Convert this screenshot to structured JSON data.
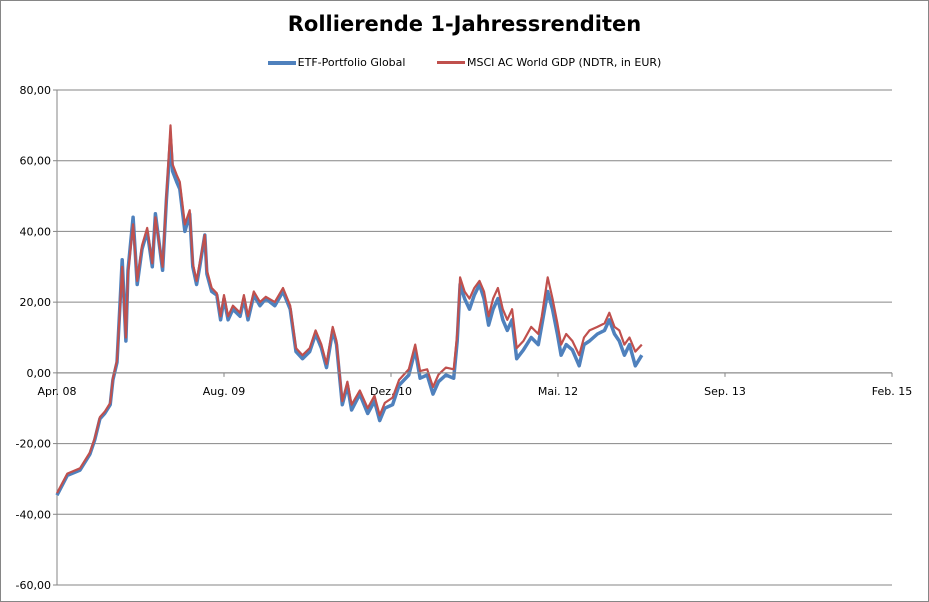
{
  "chart_data": {
    "type": "line",
    "title": "Rollierende 1-Jahressrenditen",
    "xlabel": "",
    "ylabel": "",
    "legend_position": "top",
    "grid": true,
    "ylim": [
      -60,
      80
    ],
    "yticks": [
      "80,00",
      "60,00",
      "40,00",
      "20,00",
      "0,00",
      "-20,00",
      "-40,00",
      "-60,00"
    ],
    "ytick_values": [
      80,
      60,
      40,
      20,
      0,
      -20,
      -40,
      -60
    ],
    "xticks": [
      {
        "label": "Apr. 08",
        "date": "2008-04-01"
      },
      {
        "label": "Aug. 09",
        "date": "2009-08-01"
      },
      {
        "label": "Dez. 10",
        "date": "2010-12-01"
      },
      {
        "label": "Mai. 12",
        "date": "2012-05-01"
      },
      {
        "label": "Sep. 13",
        "date": "2013-09-01"
      },
      {
        "label": "Feb. 15",
        "date": "2015-02-01"
      }
    ],
    "x": [
      "2008-04-01",
      "2008-05-01",
      "2008-06-07",
      "2008-07-06",
      "2008-07-20",
      "2008-08-04",
      "2008-08-18",
      "2008-09-03",
      "2008-09-11",
      "2008-09-23",
      "2008-10-02",
      "2008-10-08",
      "2008-10-19",
      "2008-10-25",
      "2008-11-09",
      "2008-11-21",
      "2008-12-05",
      "2008-12-20",
      "2009-01-04",
      "2009-01-13",
      "2009-02-03",
      "2009-02-14",
      "2009-02-26",
      "2009-03-04",
      "2009-03-16",
      "2009-03-25",
      "2009-04-09",
      "2009-04-23",
      "2009-05-02",
      "2009-05-13",
      "2009-05-22",
      "2009-06-06",
      "2009-06-12",
      "2009-06-26",
      "2009-07-11",
      "2009-07-22",
      "2009-08-01",
      "2009-08-13",
      "2009-08-27",
      "2009-09-17",
      "2009-09-28",
      "2009-10-10",
      "2009-10-27",
      "2009-11-14",
      "2009-12-01",
      "2009-12-27",
      "2010-01-20",
      "2010-02-10",
      "2010-02-27",
      "2010-03-18",
      "2010-04-08",
      "2010-04-25",
      "2010-05-12",
      "2010-05-27",
      "2010-06-14",
      "2010-06-25",
      "2010-07-12",
      "2010-07-27",
      "2010-08-08",
      "2010-09-01",
      "2010-09-24",
      "2010-10-14",
      "2010-10-29",
      "2010-11-13",
      "2010-12-06",
      "2010-12-26",
      "2011-01-25",
      "2011-02-14",
      "2011-03-01",
      "2011-03-23",
      "2011-04-10",
      "2011-04-27",
      "2011-05-20",
      "2011-06-13",
      "2011-06-24",
      "2011-07-03",
      "2011-07-17",
      "2011-08-01",
      "2011-08-16",
      "2011-09-01",
      "2011-09-15",
      "2011-09-29",
      "2011-10-13",
      "2011-10-28",
      "2011-11-12",
      "2011-11-26",
      "2011-12-11",
      "2011-12-25",
      "2012-01-15",
      "2012-02-08",
      "2012-03-01",
      "2012-03-12",
      "2012-03-30",
      "2012-04-14",
      "2012-04-29",
      "2012-05-10",
      "2012-05-25",
      "2012-06-12",
      "2012-07-02",
      "2012-07-16",
      "2012-08-01",
      "2012-08-24",
      "2012-09-14",
      "2012-09-28",
      "2012-10-13",
      "2012-10-27",
      "2012-11-11",
      "2012-11-26",
      "2012-12-13",
      "2013-01-01"
    ],
    "series": [
      {
        "name": "ETF-Portfolio Global",
        "color": "#4F81BD",
        "values": [
          -34.6,
          -29,
          -27.5,
          -23,
          -19,
          -13,
          -11.5,
          -9,
          -2,
          3,
          20,
          32,
          9,
          29,
          44,
          25,
          35,
          40,
          30,
          45,
          29,
          49,
          66,
          57,
          54,
          52,
          40,
          45,
          30,
          25,
          30,
          39,
          28,
          23,
          22,
          15,
          21,
          15,
          18,
          16,
          21,
          15,
          22,
          19,
          21,
          19,
          23,
          18,
          6,
          4,
          6,
          11,
          7,
          1.5,
          12,
          8,
          -9,
          -3.5,
          -10.5,
          -6,
          -11.5,
          -8,
          -13.5,
          -10,
          -9,
          -3.5,
          -0.6,
          6.5,
          -1.5,
          -0.6,
          -6,
          -2.5,
          -0.6,
          -1.5,
          9,
          25,
          21,
          18,
          22,
          25,
          21,
          13.5,
          18,
          21,
          15,
          12,
          15,
          4,
          6.5,
          10,
          8,
          13.5,
          23,
          18,
          11,
          5,
          8,
          6.5,
          2,
          8,
          9,
          11,
          12,
          15,
          11,
          9,
          5,
          8,
          2,
          5
        ]
      },
      {
        "name": "MSCI AC World GDP (NDTR, in EUR)",
        "color": "#C0504D",
        "values": [
          -34,
          -28.5,
          -27,
          -22.5,
          -18.5,
          -12.5,
          -11,
          -8.5,
          -1.5,
          3.5,
          19,
          30,
          10,
          28,
          42,
          26,
          36,
          41,
          31,
          44,
          30,
          50,
          70,
          59,
          56,
          54,
          42,
          46,
          31,
          26,
          31,
          39,
          29,
          24,
          22.5,
          16,
          22,
          16,
          19,
          17,
          22,
          16,
          23,
          20,
          21.5,
          20,
          24,
          19,
          7,
          5,
          7,
          12,
          8,
          2.5,
          13,
          9,
          -8,
          -2.5,
          -9,
          -5,
          -10,
          -6.5,
          -12,
          -8.5,
          -7,
          -2,
          1,
          8,
          0.5,
          1,
          -4,
          -0.5,
          1.5,
          1,
          11,
          27,
          23,
          21,
          24,
          26,
          23,
          16,
          21,
          24,
          18,
          15,
          18,
          7,
          9,
          13,
          11,
          16,
          27,
          21,
          14,
          8,
          11,
          9,
          5,
          10,
          12,
          13,
          14,
          17,
          13,
          12,
          8,
          10,
          6,
          8
        ]
      }
    ]
  }
}
